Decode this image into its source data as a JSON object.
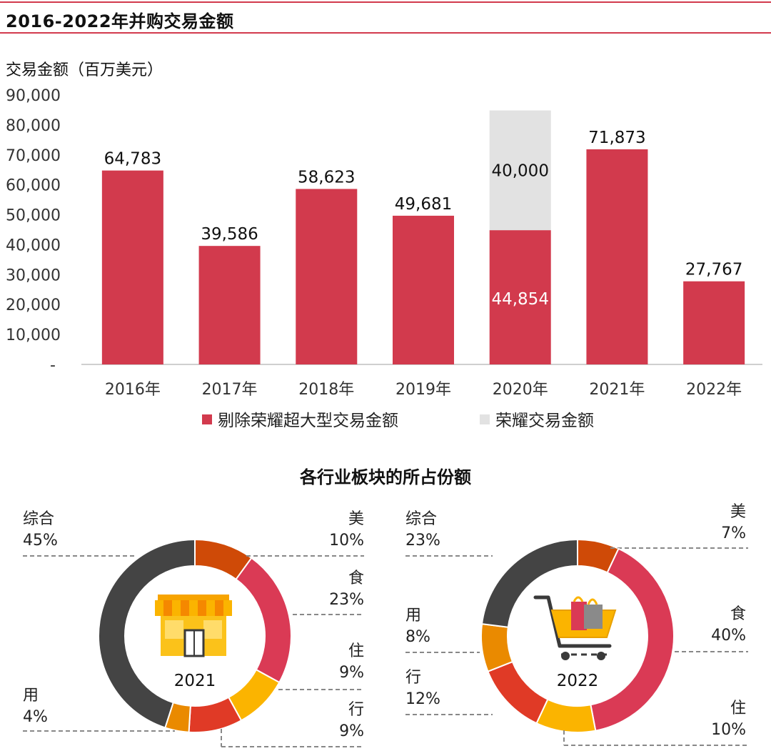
{
  "header": {
    "title": "2016-2022年并购交易金额",
    "unit_label": "交易金额（百万美元）"
  },
  "colors": {
    "accent_red": "#d23a4d",
    "honor_grey": "#e2e2e2",
    "mei": "#cf4a07",
    "shi": "#da3a55",
    "zhu": "#fbb400",
    "xing": "#e03a26",
    "yong": "#ea8a00",
    "zonghe": "#444444"
  },
  "chart_data": [
    {
      "type": "bar",
      "categories": [
        "2016年",
        "2017年",
        "2018年",
        "2019年",
        "2020年",
        "2021年",
        "2022年"
      ],
      "series": [
        {
          "name": "剔除荣耀超大型交易金额",
          "values": [
            64783,
            39586,
            58623,
            49681,
            44854,
            71873,
            27767
          ]
        },
        {
          "name": "荣耀交易金额",
          "values": [
            0,
            0,
            0,
            0,
            40000,
            0,
            0
          ]
        }
      ],
      "value_labels": {
        "primary": [
          "64,783",
          "39,586",
          "58,623",
          "49,681",
          "44,854",
          "71,873",
          "27,767"
        ],
        "secondary": [
          "",
          "",
          "",
          "",
          "40,000",
          "",
          ""
        ]
      },
      "y_ticks": [
        "-",
        "10,000",
        "20,000",
        "30,000",
        "40,000",
        "50,000",
        "60,000",
        "70,000",
        "80,000",
        "90,000"
      ],
      "ylim": [
        0,
        90000
      ],
      "stacked": true,
      "grid": false,
      "legend": "bottom"
    },
    {
      "type": "pie",
      "title": "各行业板块的所占份额",
      "center_label": "2021",
      "slices": [
        {
          "name": "美",
          "value": 10,
          "label": "10%"
        },
        {
          "name": "食",
          "value": 23,
          "label": "23%"
        },
        {
          "name": "住",
          "value": 9,
          "label": "9%"
        },
        {
          "name": "行",
          "value": 9,
          "label": "9%"
        },
        {
          "name": "用",
          "value": 4,
          "label": "4%"
        },
        {
          "name": "综合",
          "value": 45,
          "label": "45%"
        }
      ]
    },
    {
      "type": "pie",
      "center_label": "2022",
      "slices": [
        {
          "name": "美",
          "value": 7,
          "label": "7%"
        },
        {
          "name": "食",
          "value": 40,
          "label": "40%"
        },
        {
          "name": "住",
          "value": 10,
          "label": "10%"
        },
        {
          "name": "行",
          "value": 12,
          "label": "12%"
        },
        {
          "name": "用",
          "value": 8,
          "label": "8%"
        },
        {
          "name": "综合",
          "value": 23,
          "label": "23%"
        }
      ]
    }
  ],
  "icons": {
    "donut_2021": "store-icon",
    "donut_2022": "shopping-cart-icon"
  }
}
